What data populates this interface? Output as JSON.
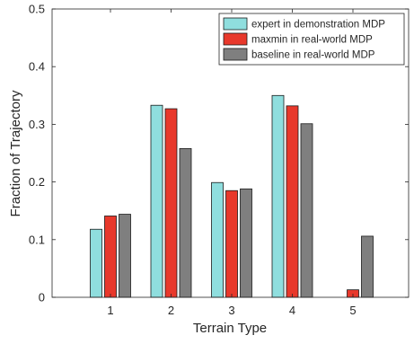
{
  "chart_data": {
    "type": "bar",
    "title": "",
    "xlabel": "Terrain Type",
    "ylabel": "Fraction of Trajectory",
    "categories": [
      "1",
      "2",
      "3",
      "4",
      "5"
    ],
    "ylim": [
      0,
      0.5
    ],
    "yticks": [
      "0",
      "0.1",
      "0.2",
      "0.3",
      "0.4",
      "0.5"
    ],
    "grid": false,
    "legend_position": "top-right",
    "series": [
      {
        "name": "expert in demonstration MDP",
        "color": "#8fdede",
        "values": [
          0.118,
          0.333,
          0.199,
          0.35,
          0.0
        ]
      },
      {
        "name": "maxmin in real-world MDP",
        "color": "#e8382b",
        "values": [
          0.141,
          0.327,
          0.185,
          0.332,
          0.013
        ]
      },
      {
        "name": "baseline in real-world MDP",
        "color": "#7f7f7f",
        "values": [
          0.144,
          0.258,
          0.188,
          0.301,
          0.106
        ]
      }
    ]
  }
}
